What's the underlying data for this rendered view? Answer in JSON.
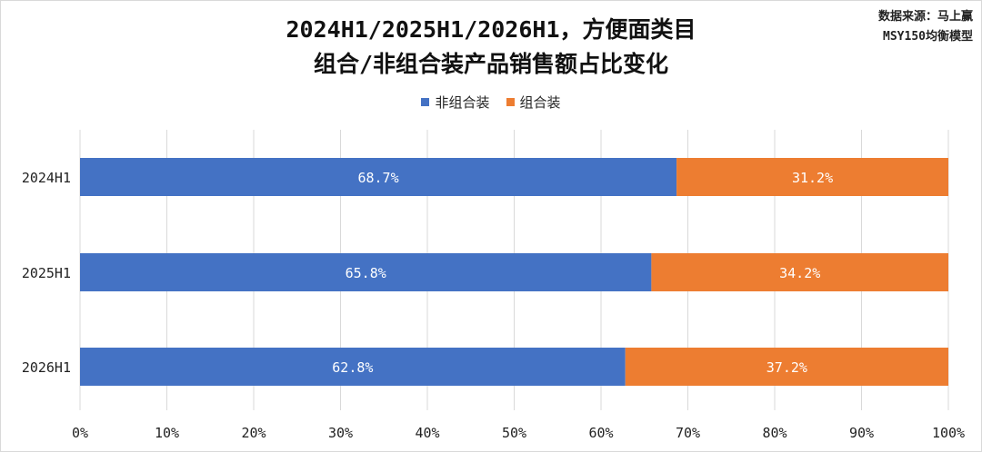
{
  "title_lines": [
    "2024H1/2025H1/2026H1，方便面类目",
    "组合/非组合装产品销售额占比变化"
  ],
  "source_lines": [
    "数据来源：马上赢",
    "MSY150均衡模型"
  ],
  "colors": {
    "非组合装": "#4472c4",
    "组合装": "#ed7d31",
    "grid": "#d9d9d9"
  },
  "chart_data": {
    "type": "bar",
    "orientation": "horizontal",
    "stacked": true,
    "categories": [
      "2024H1",
      "2025H1",
      "2026H1"
    ],
    "series": [
      {
        "name": "非组合装",
        "values": [
          68.7,
          65.8,
          62.8
        ],
        "labels": [
          "68.7%",
          "65.8%",
          "62.8%"
        ]
      },
      {
        "name": "组合装",
        "values": [
          31.2,
          34.2,
          37.2
        ],
        "labels": [
          "31.2%",
          "34.2%",
          "37.2%"
        ]
      }
    ],
    "xlim": [
      0,
      100
    ],
    "xticks": [
      0,
      10,
      20,
      30,
      40,
      50,
      60,
      70,
      80,
      90,
      100
    ],
    "xtick_labels": [
      "0%",
      "10%",
      "20%",
      "30%",
      "40%",
      "50%",
      "60%",
      "70%",
      "80%",
      "90%",
      "100%"
    ],
    "legend": "top-center",
    "grid": "vertical"
  }
}
